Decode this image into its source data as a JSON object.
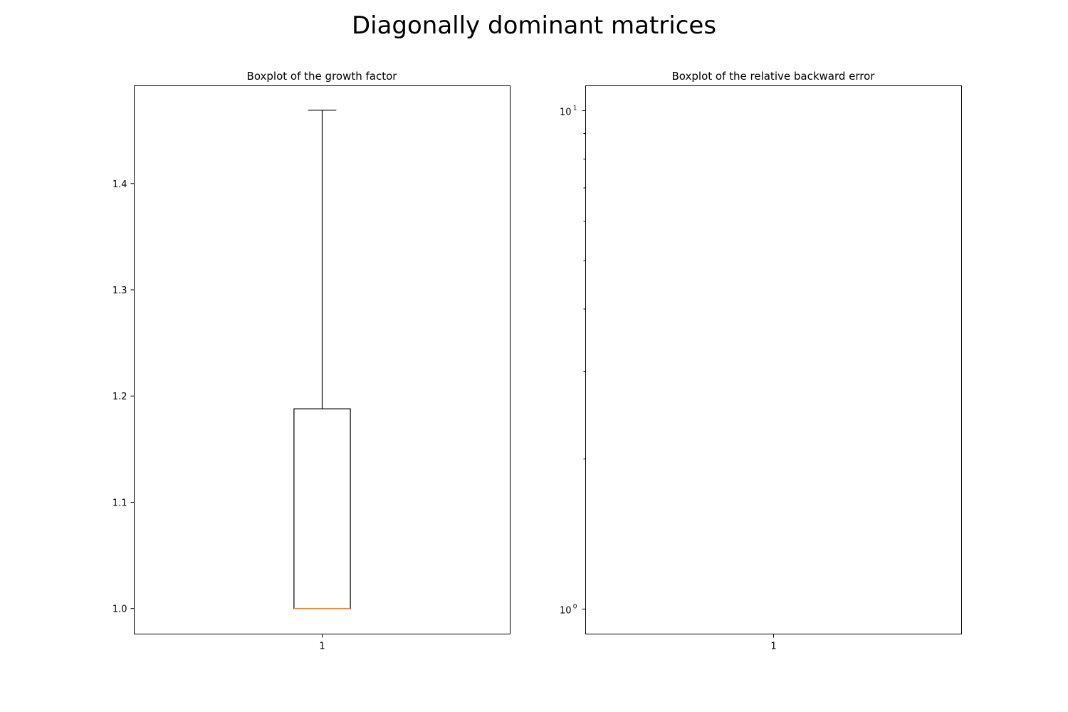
{
  "figure": {
    "suptitle": "Diagonally dominant matrices"
  },
  "chart_data": [
    {
      "type": "box",
      "title": "Boxplot of the growth factor",
      "xlabel": "",
      "ylabel": "",
      "yscale": "linear",
      "ylim": [
        0.976,
        1.492
      ],
      "categories": [
        "1"
      ],
      "yticks": [
        1.0,
        1.1,
        1.2,
        1.3,
        1.4
      ],
      "ytick_labels": [
        "1.0",
        "1.1",
        "1.2",
        "1.3",
        "1.4"
      ],
      "boxes": [
        {
          "category": "1",
          "whislo": 1.0,
          "q1": 1.0,
          "med": 1.0,
          "q3": 1.188,
          "whishi": 1.469
        }
      ],
      "colors": {
        "box": "#000000",
        "median": "#ff7f0e"
      },
      "grid": false
    },
    {
      "type": "box",
      "title": "Boxplot of the relative backward error",
      "xlabel": "",
      "ylabel": "",
      "yscale": "log",
      "ylim": [
        0.891,
        11.22
      ],
      "categories": [
        "1"
      ],
      "yticks_major": [
        1,
        10
      ],
      "ytick_labels": [
        {
          "base": "10",
          "exp": "0"
        },
        {
          "base": "10",
          "exp": "1"
        }
      ],
      "yticks_minor": [
        2,
        3,
        4,
        5,
        6,
        7,
        8,
        9
      ],
      "boxes": [],
      "colors": {
        "box": "#000000",
        "median": "#ff7f0e"
      },
      "grid": false
    }
  ]
}
